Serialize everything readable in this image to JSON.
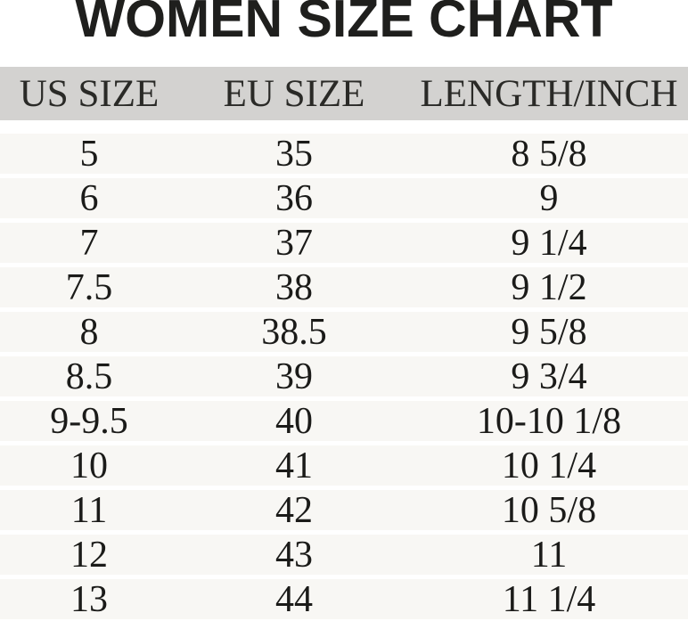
{
  "title": "WOMEN SIZE CHART",
  "table": {
    "headers": [
      "US SIZE",
      "EU SIZE",
      "LENGTH/INCH"
    ],
    "rows": [
      {
        "us_size": "5",
        "eu_size": "35",
        "length_inch": "8 5/8"
      },
      {
        "us_size": "6",
        "eu_size": "36",
        "length_inch": "9"
      },
      {
        "us_size": "7",
        "eu_size": "37",
        "length_inch": "9 1/4"
      },
      {
        "us_size": "7.5",
        "eu_size": "38",
        "length_inch": "9 1/2"
      },
      {
        "us_size": "8",
        "eu_size": "38.5",
        "length_inch": "9 5/8"
      },
      {
        "us_size": "8.5",
        "eu_size": "39",
        "length_inch": "9 3/4"
      },
      {
        "us_size": "9-9.5",
        "eu_size": "40",
        "length_inch": "10-10 1/8"
      },
      {
        "us_size": "10",
        "eu_size": "41",
        "length_inch": "10 1/4"
      },
      {
        "us_size": "11",
        "eu_size": "42",
        "length_inch": "10 5/8"
      },
      {
        "us_size": "12",
        "eu_size": "43",
        "length_inch": "11"
      },
      {
        "us_size": "13",
        "eu_size": "44",
        "length_inch": "11 1/4"
      }
    ]
  },
  "colors": {
    "header_background": "#d3d2d0",
    "row_background": "#f8f7f4",
    "row_divider": "#ffffff",
    "title_text": "#1f1f1d",
    "body_text": "#1b1b19"
  },
  "chart_data": {
    "type": "table",
    "title": "WOMEN SIZE CHART",
    "columns": [
      "US SIZE",
      "EU SIZE",
      "LENGTH/INCH"
    ],
    "rows": [
      [
        "5",
        "35",
        "8 5/8"
      ],
      [
        "6",
        "36",
        "9"
      ],
      [
        "7",
        "37",
        "9 1/4"
      ],
      [
        "7.5",
        "38",
        "9 1/2"
      ],
      [
        "8",
        "38.5",
        "9 5/8"
      ],
      [
        "8.5",
        "39",
        "9 3/4"
      ],
      [
        "9-9.5",
        "40",
        "10-10 1/8"
      ],
      [
        "10",
        "41",
        "10 1/4"
      ],
      [
        "11",
        "42",
        "10 5/8"
      ],
      [
        "12",
        "43",
        "11"
      ],
      [
        "13",
        "44",
        "11 1/4"
      ]
    ]
  }
}
